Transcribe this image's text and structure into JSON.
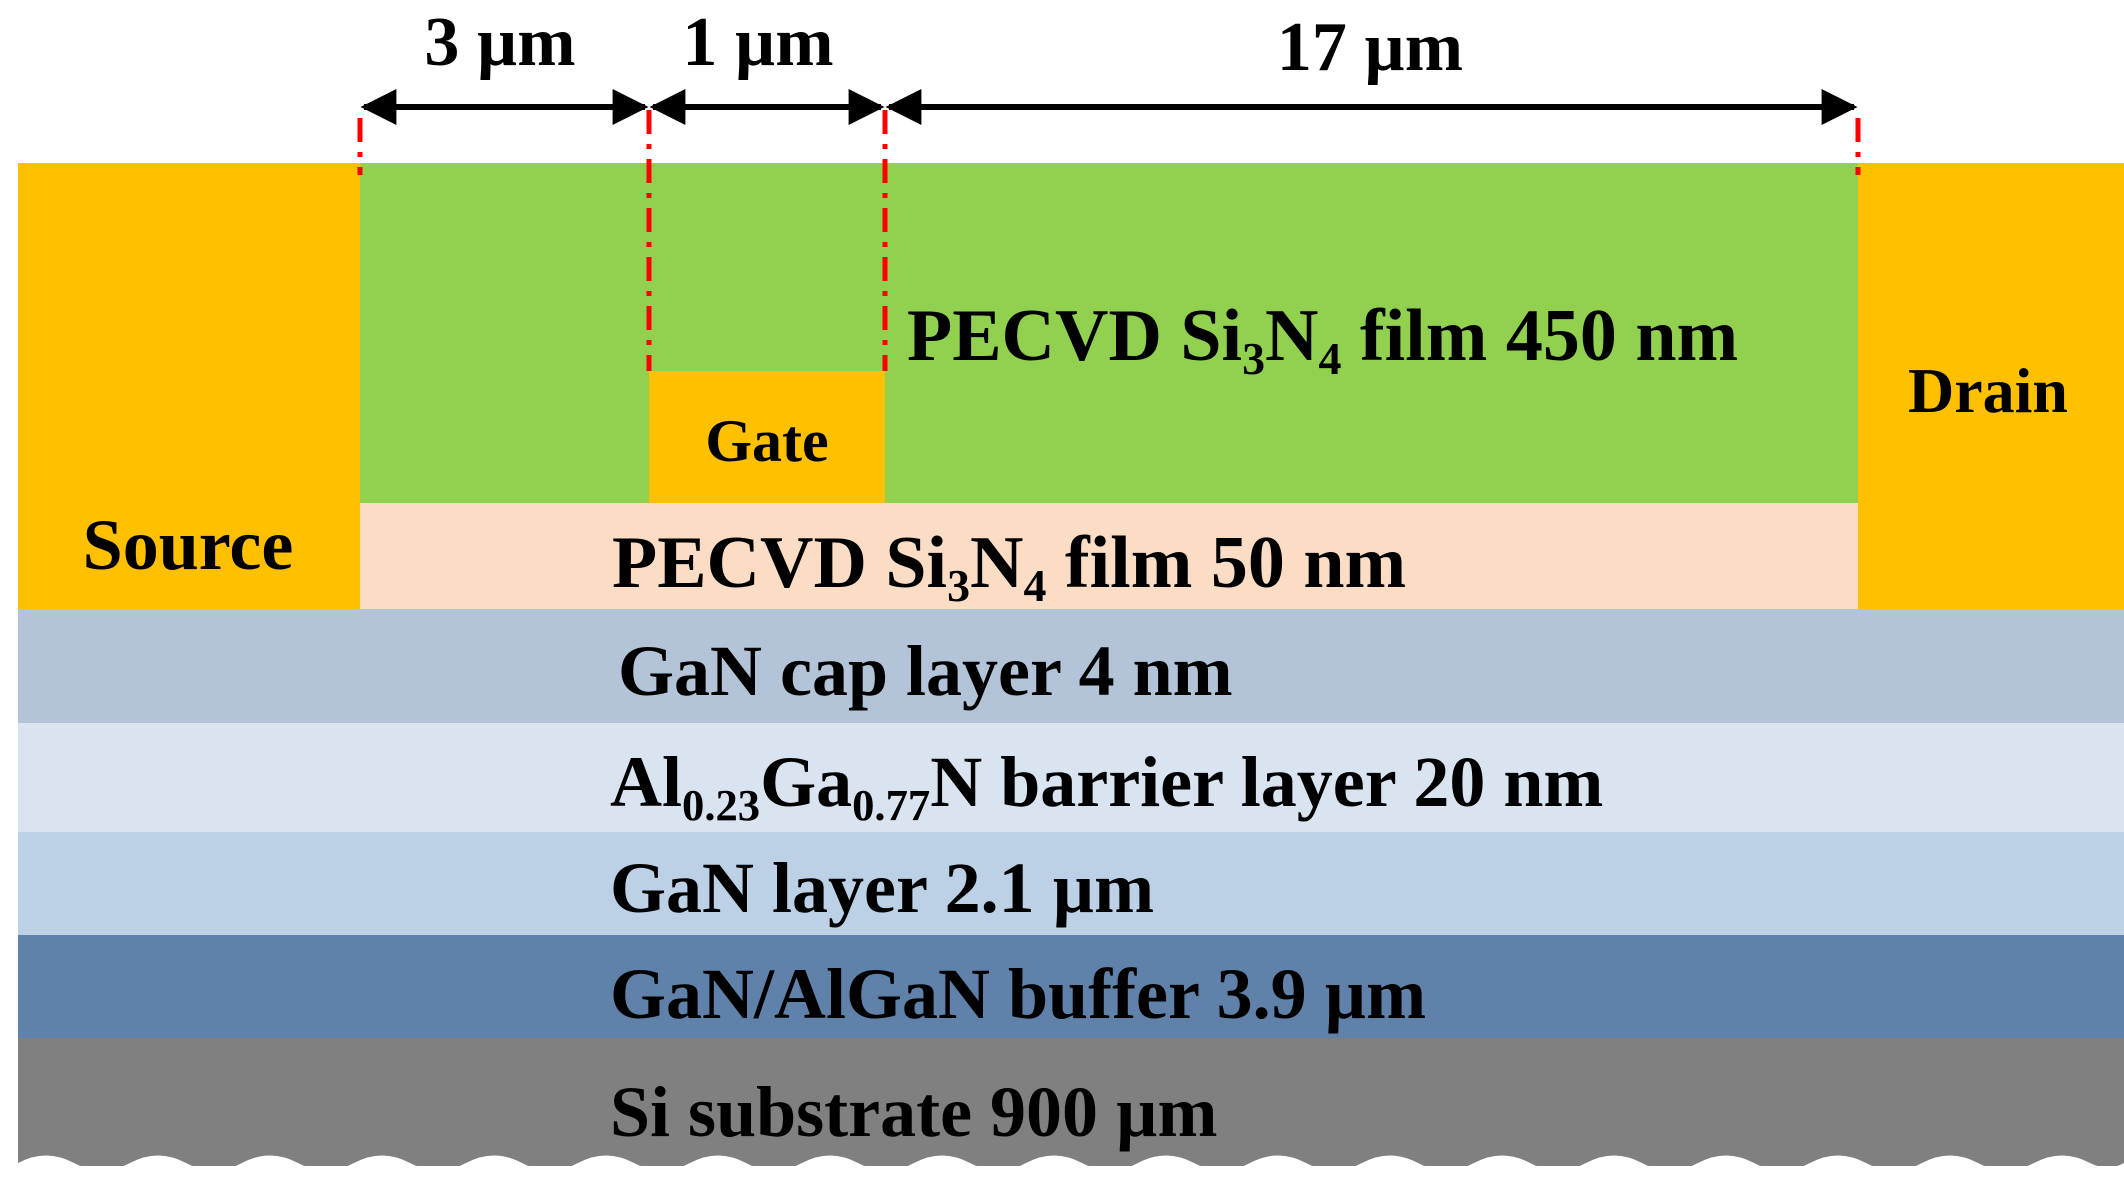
{
  "colors": {
    "metal": "#FFC000",
    "passivation_thick": "#92D050",
    "passivation_thin": "#FBDCC4",
    "gan_cap": "#B4C4D8",
    "barrier": "#D9E4F0",
    "gan_layer": "#BCD0E6",
    "buffer": "#5F81AA",
    "substrate": "#808080",
    "dimension_marker": "#FF0000",
    "text": "#000000"
  },
  "dimensions": {
    "source_gate": "3 µm",
    "gate_length": "1 µm",
    "gate_drain": "17 µm"
  },
  "contacts": {
    "source": "Source",
    "gate": "Gate",
    "drain": "Drain"
  },
  "films": {
    "thick": {
      "prefix": "PECVD Si",
      "sub1": "3",
      "mid": "N",
      "sub2": "4",
      "suffix": " film 450 nm"
    },
    "thin": {
      "prefix": "PECVD Si",
      "sub1": "3",
      "mid": "N",
      "sub2": "4",
      "suffix": " film 50 nm"
    }
  },
  "layers": {
    "cap": "GaN cap layer 4 nm",
    "barrier": {
      "el1": "Al",
      "x1": "0.23",
      "el2": "Ga",
      "x2": "0.77",
      "rest": "N barrier layer 20 nm"
    },
    "gan": "GaN layer 2.1 µm",
    "buffer": "GaN/AlGaN buffer 3.9 µm",
    "substrate": "Si substrate 900 µm"
  }
}
